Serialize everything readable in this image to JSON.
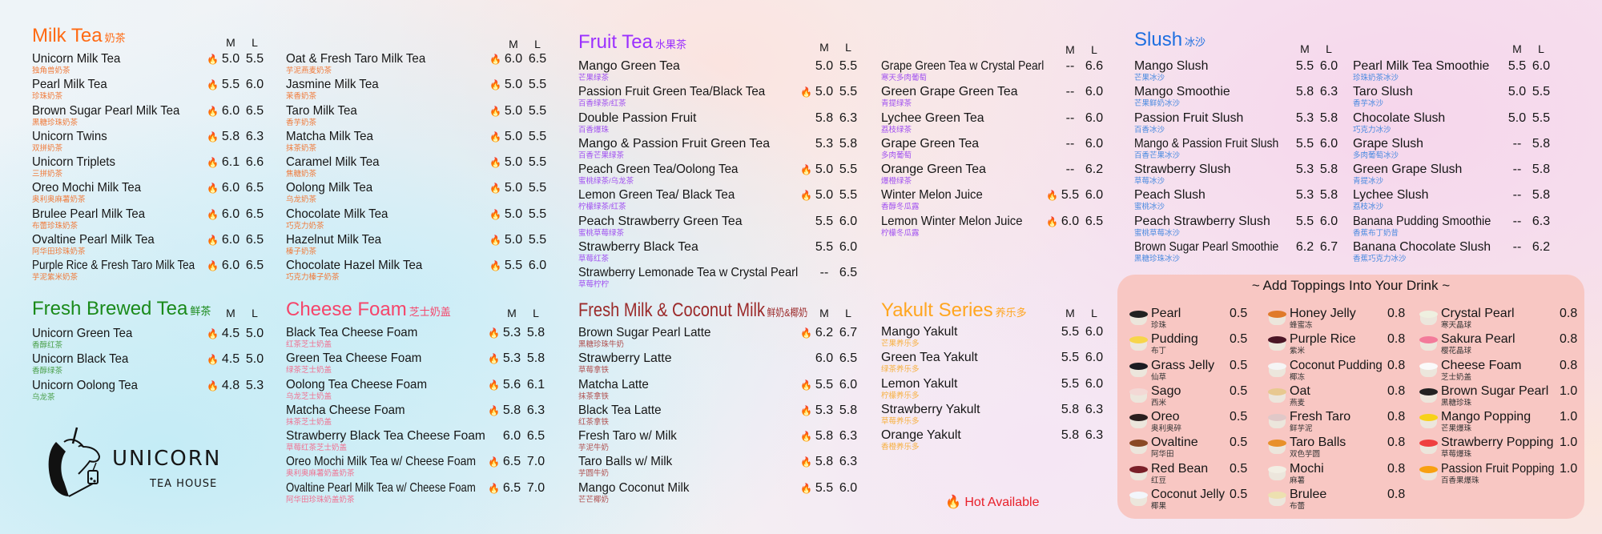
{
  "hot_icon": "fire-icon",
  "hot_label": "Hot Available",
  "brand": {
    "name": "UNICORN",
    "tagline": "TEA HOUSE"
  },
  "blocks": [
    {
      "id": "mt1",
      "title": "Milk Tea",
      "title_zh": "奶茶",
      "color": "#ff6a13",
      "sub_color": "#f07a3a",
      "size_m": "M",
      "size_l": "L",
      "items": [
        {
          "name": "Unicorn Milk Tea",
          "zh": "独角兽奶茶",
          "hot": true,
          "m": "5.0",
          "l": "5.5"
        },
        {
          "name": "Pearl Milk Tea",
          "zh": "珍珠奶茶",
          "hot": true,
          "m": "5.5",
          "l": "6.0"
        },
        {
          "name": "Brown Sugar Pearl Milk Tea",
          "zh": "黑糖珍珠奶茶",
          "hot": true,
          "m": "6.0",
          "l": "6.5"
        },
        {
          "name": "Unicorn Twins",
          "zh": "双拼奶茶",
          "hot": true,
          "m": "5.8",
          "l": "6.3"
        },
        {
          "name": "Unicorn Triplets",
          "zh": "三拼奶茶",
          "hot": true,
          "m": "6.1",
          "l": "6.6"
        },
        {
          "name": "Oreo Mochi Milk Tea",
          "zh": "奥利奥麻薯奶茶",
          "hot": true,
          "m": "6.0",
          "l": "6.5"
        },
        {
          "name": "Brulee Pearl Milk Tea",
          "zh": "布蕾珍珠奶茶",
          "hot": true,
          "m": "6.0",
          "l": "6.5"
        },
        {
          "name": "Ovaltine Pearl Milk Tea",
          "zh": "阿华田珍珠奶茶",
          "hot": true,
          "m": "6.0",
          "l": "6.5"
        },
        {
          "name": "Purple Rice & Fresh Taro Milk Tea",
          "zh": "芋泥紫米奶茶",
          "hot": true,
          "m": "6.0",
          "l": "6.5"
        }
      ]
    },
    {
      "id": "mt2",
      "color": "#ff6a13",
      "sub_color": "#f07a3a",
      "size_m": "M",
      "size_l": "L",
      "items": [
        {
          "name": "Oat & Fresh Taro Milk Tea",
          "zh": "芋泥燕麦奶茶",
          "hot": true,
          "m": "6.0",
          "l": "6.5"
        },
        {
          "name": "Jasmine Milk Tea",
          "zh": "茉香奶茶",
          "hot": true,
          "m": "5.0",
          "l": "5.5"
        },
        {
          "name": "Taro Milk Tea",
          "zh": "香芋奶茶",
          "hot": true,
          "m": "5.0",
          "l": "5.5"
        },
        {
          "name": "Matcha Milk Tea",
          "zh": "抹茶奶茶",
          "hot": true,
          "m": "5.0",
          "l": "5.5"
        },
        {
          "name": "Caramel Milk Tea",
          "zh": "焦糖奶茶",
          "hot": true,
          "m": "5.0",
          "l": "5.5"
        },
        {
          "name": "Oolong Milk Tea",
          "zh": "乌龙奶茶",
          "hot": true,
          "m": "5.0",
          "l": "5.5"
        },
        {
          "name": "Chocolate Milk Tea",
          "zh": "巧克力奶茶",
          "hot": true,
          "m": "5.0",
          "l": "5.5"
        },
        {
          "name": "Hazelnut Milk Tea",
          "zh": "榛子奶茶",
          "hot": true,
          "m": "5.0",
          "l": "5.5"
        },
        {
          "name": "Chocolate Hazel Milk Tea",
          "zh": "巧克力榛子奶茶",
          "hot": true,
          "m": "5.5",
          "l": "6.0"
        }
      ]
    },
    {
      "id": "fb",
      "title": "Fresh Brewed Tea",
      "title_zh": "鲜茶",
      "color": "#1a8a1a",
      "sub_color": "#4aa04a",
      "size_m": "M",
      "size_l": "L",
      "items": [
        {
          "name": "Unicorn Green Tea",
          "zh": "香醇红茶",
          "hot": true,
          "m": "4.5",
          "l": "5.0"
        },
        {
          "name": "Unicorn Black Tea",
          "zh": "香醇绿茶",
          "hot": true,
          "m": "4.5",
          "l": "5.0"
        },
        {
          "name": "Unicorn Oolong Tea",
          "zh": "乌龙茶",
          "hot": true,
          "m": "4.8",
          "l": "5.3"
        }
      ]
    },
    {
      "id": "cf",
      "title": "Cheese Foam",
      "title_zh": "芝士奶盖",
      "color": "#f5456a",
      "sub_color": "#f07090",
      "size_m": "M",
      "size_l": "L",
      "items": [
        {
          "name": "Black Tea Cheese Foam",
          "zh": "红茶芝士奶盖",
          "hot": true,
          "m": "5.3",
          "l": "5.8"
        },
        {
          "name": "Green Tea Cheese Foam",
          "zh": "绿茶芝士奶盖",
          "hot": true,
          "m": "5.3",
          "l": "5.8"
        },
        {
          "name": "Oolong Tea Cheese Foam",
          "zh": "乌龙芝士奶盖",
          "hot": true,
          "m": "5.6",
          "l": "6.1"
        },
        {
          "name": "Matcha Cheese Foam",
          "zh": "抹茶芝士奶盖",
          "hot": true,
          "m": "5.8",
          "l": "6.3"
        },
        {
          "name": "Strawberry Black Tea Cheese Foam",
          "zh": "草莓红茶芝士奶盖",
          "hot": false,
          "m": "6.0",
          "l": "6.5"
        },
        {
          "name": "Oreo Mochi Milk Tea w/ Cheese Foam",
          "zh": "奥利奥麻薯奶盖奶茶",
          "hot": true,
          "m": "6.5",
          "l": "7.0"
        },
        {
          "name": "Ovaltine Pearl Milk Tea w/ Cheese Foam",
          "zh": "阿华田珍珠奶盖奶茶",
          "hot": true,
          "m": "6.5",
          "l": "7.0"
        }
      ]
    },
    {
      "id": "ft1",
      "title": "Fruit Tea",
      "title_zh": "水果茶",
      "color": "#9b30ff",
      "sub_color": "#a050f0",
      "size_m": "M",
      "size_l": "L",
      "items": [
        {
          "name": "Mango Green Tea",
          "zh": "芒果绿茶",
          "hot": false,
          "m": "5.0",
          "l": "5.5"
        },
        {
          "name": "Passion Fruit Green Tea/Black Tea",
          "zh": "百香绿茶/红茶",
          "hot": true,
          "m": "5.0",
          "l": "5.5"
        },
        {
          "name": "Double Passion Fruit",
          "zh": "百香爆珠",
          "hot": false,
          "m": "5.8",
          "l": "6.3"
        },
        {
          "name": "Mango & Passion Fruit Green Tea",
          "zh": "百香芒果绿茶",
          "hot": false,
          "m": "5.3",
          "l": "5.8"
        },
        {
          "name": "Peach Green Tea/Oolong Tea",
          "zh": "蜜桃绿茶/乌龙茶",
          "hot": true,
          "m": "5.0",
          "l": "5.5"
        },
        {
          "name": "Lemon Green Tea/ Black Tea",
          "zh": "柠檬绿茶/红茶",
          "hot": true,
          "m": "5.0",
          "l": "5.5"
        },
        {
          "name": "Peach Strawberry Green Tea",
          "zh": "蜜桃草莓绿茶",
          "hot": false,
          "m": "5.5",
          "l": "6.0"
        },
        {
          "name": "Strawberry Black Tea",
          "zh": "草莓红茶",
          "hot": false,
          "m": "5.5",
          "l": "6.0"
        },
        {
          "name": "Strawberry Lemonade Tea w Crystal Pearl",
          "zh": "草莓柠柠",
          "hot": false,
          "m": "--",
          "l": "6.5"
        }
      ]
    },
    {
      "id": "ft2",
      "color": "#9b30ff",
      "sub_color": "#a050f0",
      "size_m": "M",
      "size_l": "L",
      "items": [
        {
          "name": "Grape Green Tea w Crystal Pearl",
          "zh": "寒天多肉葡萄",
          "hot": false,
          "m": "--",
          "l": "6.6"
        },
        {
          "name": "Green Grape Green Tea",
          "zh": "青提绿茶",
          "hot": false,
          "m": "--",
          "l": "6.0"
        },
        {
          "name": "Lychee Green Tea",
          "zh": "荔枝绿茶",
          "hot": false,
          "m": "--",
          "l": "6.0"
        },
        {
          "name": "Grape Green Tea",
          "zh": "多肉葡萄",
          "hot": false,
          "m": "--",
          "l": "6.0"
        },
        {
          "name": "Orange Green Tea",
          "zh": "爆橙绿茶",
          "hot": false,
          "m": "--",
          "l": "6.2"
        },
        {
          "name": "Winter Melon Juice",
          "zh": "香醇冬瓜露",
          "hot": true,
          "m": "5.5",
          "l": "6.0"
        },
        {
          "name": "Lemon Winter Melon Juice",
          "zh": "柠檬冬瓜露",
          "hot": true,
          "m": "6.0",
          "l": "6.5"
        }
      ]
    },
    {
      "id": "fm",
      "title": "Fresh Milk & Coconut Milk",
      "title_zh": "鲜奶&椰奶",
      "color": "#9b2a2a",
      "sub_color": "#b05050",
      "size_m": "M",
      "size_l": "L",
      "items": [
        {
          "name": "Brown Sugar Pearl Latte",
          "zh": "黑糖珍珠牛奶",
          "hot": true,
          "m": "6.2",
          "l": "6.7"
        },
        {
          "name": "Strawberry Latte",
          "zh": "草莓拿铁",
          "hot": false,
          "m": "6.0",
          "l": "6.5"
        },
        {
          "name": "Matcha Latte",
          "zh": "抹茶拿铁",
          "hot": true,
          "m": "5.5",
          "l": "6.0"
        },
        {
          "name": "Black Tea Latte",
          "zh": "红茶拿铁",
          "hot": true,
          "m": "5.3",
          "l": "5.8"
        },
        {
          "name": "Fresh Taro w/ Milk",
          "zh": "芋泥牛奶",
          "hot": true,
          "m": "5.8",
          "l": "6.3"
        },
        {
          "name": "Taro Balls w/ Milk",
          "zh": "芋圆牛奶",
          "hot": true,
          "m": "5.8",
          "l": "6.3"
        },
        {
          "name": "Mango Coconut Milk",
          "zh": "芒芒椰奶",
          "hot": true,
          "m": "5.5",
          "l": "6.0"
        }
      ]
    },
    {
      "id": "yk",
      "title": "Yakult Series",
      "title_zh": "养乐多",
      "color": "#ffa620",
      "sub_color": "#f7b040",
      "size_m": "M",
      "size_l": "L",
      "items": [
        {
          "name": "Mango Yakult",
          "zh": "芒果养乐多",
          "hot": false,
          "m": "5.5",
          "l": "6.0"
        },
        {
          "name": "Green Tea Yakult",
          "zh": "绿茶养乐多",
          "hot": false,
          "m": "5.5",
          "l": "6.0"
        },
        {
          "name": "Lemon Yakult",
          "zh": "柠檬养乐多",
          "hot": false,
          "m": "5.5",
          "l": "6.0"
        },
        {
          "name": "Strawberry Yakult",
          "zh": "草莓养乐多",
          "hot": false,
          "m": "5.8",
          "l": "6.3"
        },
        {
          "name": "Orange Yakult",
          "zh": "香橙养乐多",
          "hot": false,
          "m": "5.8",
          "l": "6.3"
        }
      ]
    },
    {
      "id": "sl1",
      "title": "Slush",
      "title_zh": "冰沙",
      "color": "#1e6fe0",
      "sub_color": "#4a8ae0",
      "size_m": "M",
      "size_l": "L",
      "items": [
        {
          "name": "Mango Slush",
          "zh": "芒果冰沙",
          "hot": false,
          "m": "5.5",
          "l": "6.0"
        },
        {
          "name": "Mango Smoothie",
          "zh": "芒果鲜奶冰沙",
          "hot": false,
          "m": "5.8",
          "l": "6.3"
        },
        {
          "name": "Passion Fruit Slush",
          "zh": "百香冰沙",
          "hot": false,
          "m": "5.3",
          "l": "5.8"
        },
        {
          "name": "Mango & Passion Fruit Slush",
          "zh": "百香芒果冰沙",
          "hot": false,
          "m": "5.5",
          "l": "6.0"
        },
        {
          "name": "Strawberry Slush",
          "zh": "草莓冰沙",
          "hot": false,
          "m": "5.3",
          "l": "5.8"
        },
        {
          "name": "Peach Slush",
          "zh": "蜜桃冰沙",
          "hot": false,
          "m": "5.3",
          "l": "5.8"
        },
        {
          "name": "Peach Strawberry Slush",
          "zh": "蜜桃草莓冰沙",
          "hot": false,
          "m": "5.5",
          "l": "6.0"
        },
        {
          "name": "Brown Sugar Pearl Smoothie",
          "zh": "黑糖珍珠冰沙",
          "hot": false,
          "m": "6.2",
          "l": "6.7"
        }
      ]
    },
    {
      "id": "sl2",
      "color": "#1e6fe0",
      "sub_color": "#4a8ae0",
      "size_m": "M",
      "size_l": "L",
      "items": [
        {
          "name": "Pearl Milk Tea Smoothie",
          "zh": "珍珠奶茶冰沙",
          "hot": false,
          "m": "5.5",
          "l": "6.0"
        },
        {
          "name": "Taro Slush",
          "zh": "香芋冰沙",
          "hot": false,
          "m": "5.0",
          "l": "5.5"
        },
        {
          "name": "Chocolate Slush",
          "zh": "巧克力冰沙",
          "hot": false,
          "m": "5.0",
          "l": "5.5"
        },
        {
          "name": "Grape Slush",
          "zh": "多肉葡萄冰沙",
          "hot": false,
          "m": "--",
          "l": "5.8"
        },
        {
          "name": "Green Grape Slush",
          "zh": "青提冰沙",
          "hot": false,
          "m": "--",
          "l": "5.8"
        },
        {
          "name": "Lychee Slush",
          "zh": "荔枝冰沙",
          "hot": false,
          "m": "--",
          "l": "5.8"
        },
        {
          "name": "Banana Pudding Smoothie",
          "zh": "香蕉布丁奶昔",
          "hot": false,
          "m": "--",
          "l": "6.3"
        },
        {
          "name": "Banana Chocolate Slush",
          "zh": "香蕉巧克力冰沙",
          "hot": false,
          "m": "--",
          "l": "6.2"
        }
      ]
    }
  ],
  "toppings": {
    "title": "~ Add Toppings Into Your Drink ~",
    "columns": [
      [
        {
          "name": "Pearl",
          "zh": "珍珠",
          "price": "0.5",
          "color": "#222222"
        },
        {
          "name": "Pudding",
          "zh": "布丁",
          "price": "0.5",
          "color": "#f7d54a"
        },
        {
          "name": "Grass Jelly",
          "zh": "仙草",
          "price": "0.5",
          "color": "#1c1c22"
        },
        {
          "name": "Sago",
          "zh": "西米",
          "price": "0.5",
          "color": "#f3d8d5"
        },
        {
          "name": "Oreo",
          "zh": "奥利奥碎",
          "price": "0.5",
          "color": "#2a1e1e"
        },
        {
          "name": "Ovaltine",
          "zh": "阿华田",
          "price": "0.5",
          "color": "#8a4a25"
        },
        {
          "name": "Red Bean",
          "zh": "红豆",
          "price": "0.5",
          "color": "#7a1f28"
        },
        {
          "name": "Coconut Jelly",
          "zh": "椰果",
          "price": "0.5",
          "color": "#f2f6fb"
        }
      ],
      [
        {
          "name": "Honey Jelly",
          "zh": "蜂蜜冻",
          "price": "0.8",
          "color": "#e07a2a"
        },
        {
          "name": "Purple Rice",
          "zh": "紫米",
          "price": "0.8",
          "color": "#4a1525"
        },
        {
          "name": "Coconut Pudding",
          "zh": "椰冻",
          "price": "0.8",
          "color": "#f5f5f5"
        },
        {
          "name": "Oat",
          "zh": "燕麦",
          "price": "0.8",
          "color": "#e8c890"
        },
        {
          "name": "Fresh Taro",
          "zh": "鲜芋泥",
          "price": "0.8",
          "color": "#e0c8c8"
        },
        {
          "name": "Taro Balls",
          "zh": "双色芋圆",
          "price": "0.8",
          "color": "#e8902a"
        },
        {
          "name": "Mochi",
          "zh": "麻薯",
          "price": "0.8",
          "color": "#f2efe4"
        },
        {
          "name": "Brulee",
          "zh": "布蕾",
          "price": "0.8",
          "color": "#ede0b0"
        }
      ],
      [
        {
          "name": "Crystal Pearl",
          "zh": "寒天晶球",
          "price": "0.8",
          "color": "#eef0e0"
        },
        {
          "name": "Sakura Pearl",
          "zh": "樱花晶球",
          "price": "0.8",
          "color": "#f37a9a"
        },
        {
          "name": "Cheese Foam",
          "zh": "芝士奶盖",
          "price": "0.8",
          "color": "#fafafa"
        },
        {
          "name": "Brown Sugar Pearl",
          "zh": "黑糖珍珠",
          "price": "1.0",
          "color": "#222222"
        },
        {
          "name": "Mango Popping",
          "zh": "芒果爆珠",
          "price": "1.0",
          "color": "#f7d21a"
        },
        {
          "name": "Strawberry Popping",
          "zh": "草莓爆珠",
          "price": "1.0",
          "color": "#ef4040"
        },
        {
          "name": "Passion Fruit Popping",
          "zh": "百香果爆珠",
          "price": "1.0",
          "color": "#f8a010"
        }
      ]
    ]
  }
}
